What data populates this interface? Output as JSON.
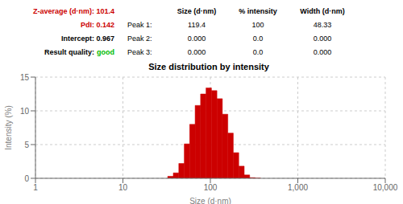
{
  "chart_data": {
    "type": "bar",
    "title": "Size distribution by intensity",
    "xlabel": "Size (d·nm)",
    "ylabel": "Intensity (%)",
    "x": [
      35.0,
      40.5,
      46.8,
      54.0,
      62.3,
      71.9,
      83.0,
      95.8,
      110.6,
      127.7,
      147.4,
      170.2,
      196.5,
      227.0,
      262.0,
      302.5,
      349.5
    ],
    "values": [
      0.3,
      0.8,
      2.2,
      5.1,
      8.0,
      10.8,
      12.5,
      13.4,
      13.0,
      11.8,
      9.5,
      6.7,
      3.8,
      1.8,
      0.5,
      0.1,
      0.02
    ],
    "color": "#cc0000",
    "log": "x",
    "xlim": [
      1,
      10000
    ],
    "xticks": [
      1,
      10,
      100,
      {
        "value": 1000,
        "label": "1,000"
      },
      {
        "value": 10000,
        "label": "10,000"
      }
    ],
    "ylim": [
      0,
      15
    ],
    "yticks": [
      0,
      5,
      10,
      15
    ],
    "grid": true,
    "annotations": [
      {
        "text": "Z-average (d·nm): 101.4",
        "color": "#cc0000"
      },
      {
        "text": "PdI: 0.142",
        "color": "#cc0000"
      },
      {
        "text": "Intercept: 0.967",
        "color": "#000000"
      },
      {
        "text": "Result quality:",
        "color": "#000000",
        "suffix": "good",
        "suffix_color": "#00bb00"
      }
    ],
    "table": {
      "headers": [
        "Size (d·nm)",
        "% intensity",
        "Width (d·nm)"
      ],
      "rows": [
        [
          "Peak 1:",
          "119.4",
          "100",
          "48.33"
        ],
        [
          "Peak 2:",
          "0.000",
          "0.0",
          "0.000"
        ],
        [
          "Peak 3:",
          "0.000",
          "0.0",
          "0.000"
        ]
      ]
    }
  }
}
